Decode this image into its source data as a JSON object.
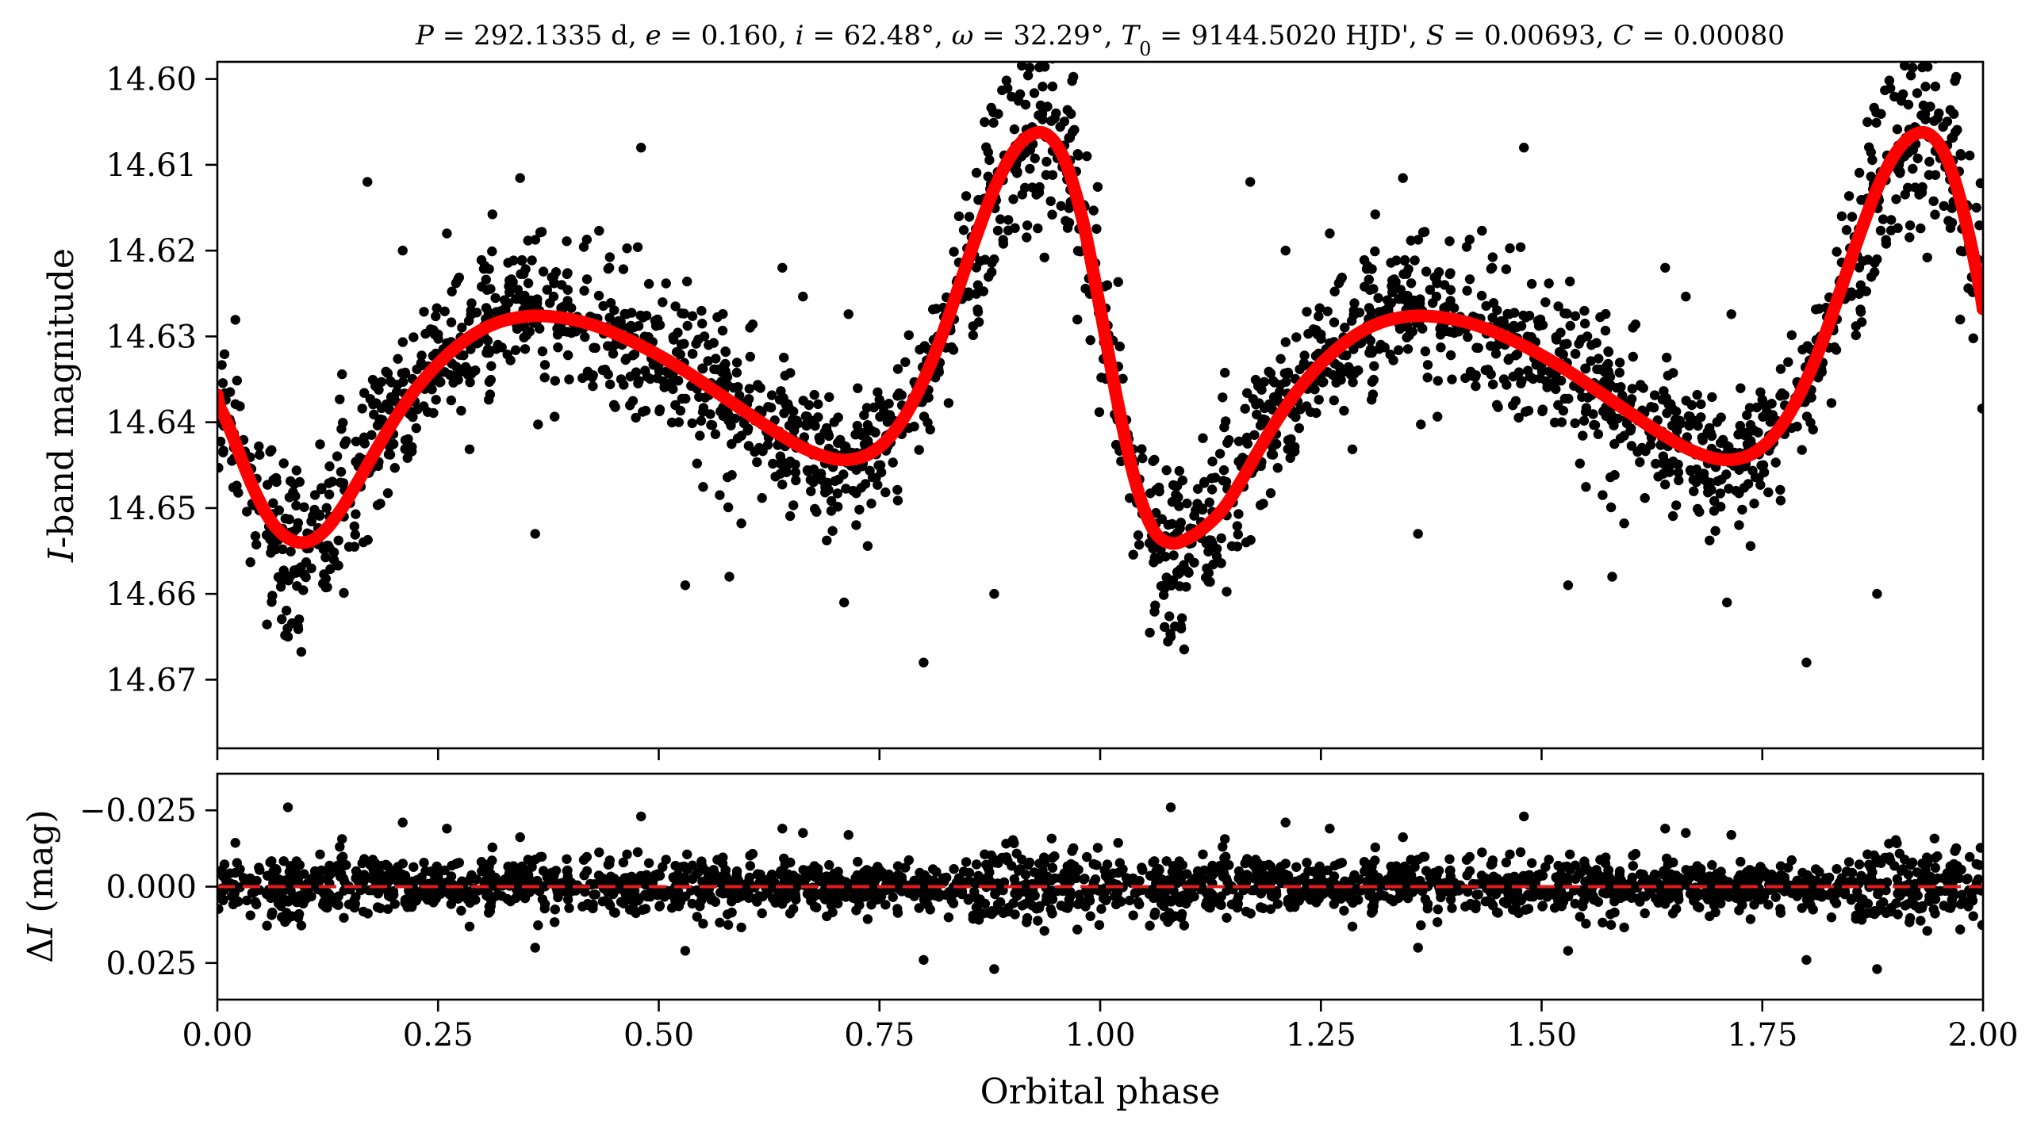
{
  "chart_data": [
    {
      "type": "scatter",
      "panel": "top",
      "title": "P = 292.1335 d, e = 0.160, i = 62.48°, ω = 32.29°, T0 = 9144.5020 HJD', S = 0.00693, C = 0.00080",
      "title_parts": {
        "P": "P",
        "P_val": " = 292.1335 d, ",
        "e": "e",
        "e_val": " = 0.160, ",
        "i": "i",
        "i_val": " = 62.48°, ",
        "w": "ω",
        "w_val": " = 32.29°, ",
        "T": "T",
        "T_sub": "0",
        "T_val": " = 9144.5020 HJD', ",
        "S": "S",
        "S_val": " = 0.00693, ",
        "C": "C",
        "C_val": " = 0.00080"
      },
      "ylabel_italic": "I",
      "ylabel_rest": "-band magnitude",
      "xlim": [
        0.0,
        2.0
      ],
      "ylim": [
        14.678,
        14.598
      ],
      "y_inverted": true,
      "yticks": [
        "14.60",
        "14.61",
        "14.62",
        "14.63",
        "14.64",
        "14.65",
        "14.66",
        "14.67"
      ],
      "ytick_values": [
        14.6,
        14.61,
        14.62,
        14.63,
        14.64,
        14.65,
        14.66,
        14.67
      ],
      "xticks_values": [
        0.0,
        0.25,
        0.5,
        0.75,
        1.0,
        1.25,
        1.5,
        1.75,
        2.0
      ],
      "series": [
        {
          "kind": "points",
          "color": "#000000",
          "outliers": [
            [
              0.08,
              14.665
            ],
            [
              0.17,
              14.612
            ],
            [
              0.21,
              14.62
            ],
            [
              0.26,
              14.618
            ],
            [
              0.36,
              14.653
            ],
            [
              0.39,
              14.624
            ],
            [
              0.48,
              14.608
            ],
            [
              0.53,
              14.659
            ],
            [
              0.58,
              14.658
            ],
            [
              0.64,
              14.622
            ],
            [
              0.71,
              14.661
            ],
            [
              0.8,
              14.668
            ],
            [
              0.84,
              14.616
            ],
            [
              0.88,
              14.66
            ],
            [
              0.95,
              14.604
            ],
            [
              1.08,
              14.665
            ],
            [
              1.17,
              14.612
            ],
            [
              1.21,
              14.62
            ],
            [
              1.26,
              14.618
            ],
            [
              1.36,
              14.653
            ],
            [
              1.39,
              14.624
            ],
            [
              1.48,
              14.608
            ],
            [
              1.53,
              14.659
            ],
            [
              1.58,
              14.658
            ],
            [
              1.64,
              14.622
            ],
            [
              1.71,
              14.661
            ],
            [
              1.8,
              14.668
            ],
            [
              1.84,
              14.616
            ],
            [
              1.88,
              14.66
            ],
            [
              1.95,
              14.604
            ]
          ]
        },
        {
          "kind": "model",
          "color": "#ff0000",
          "x": [
            0.0,
            0.02,
            0.04,
            0.06,
            0.08,
            0.1,
            0.12,
            0.14,
            0.16,
            0.18,
            0.2,
            0.22,
            0.24,
            0.26,
            0.28,
            0.3,
            0.32,
            0.34,
            0.36,
            0.38,
            0.4,
            0.42,
            0.44,
            0.46,
            0.48,
            0.5,
            0.52,
            0.54,
            0.56,
            0.58,
            0.6,
            0.62,
            0.64,
            0.66,
            0.68,
            0.7,
            0.72,
            0.74,
            0.76,
            0.78,
            0.8,
            0.82,
            0.84,
            0.86,
            0.88,
            0.9,
            0.92,
            0.94,
            0.96,
            0.98,
            1.0,
            1.02,
            1.04,
            1.06,
            1.08,
            1.1,
            1.12,
            1.14,
            1.16,
            1.18,
            1.2,
            1.22,
            1.24,
            1.26,
            1.28,
            1.3,
            1.32,
            1.34,
            1.36,
            1.38,
            1.4,
            1.42,
            1.44,
            1.46,
            1.48,
            1.5,
            1.52,
            1.54,
            1.56,
            1.58,
            1.6,
            1.62,
            1.64,
            1.66,
            1.68,
            1.7,
            1.72,
            1.74,
            1.76,
            1.78,
            1.8,
            1.82,
            1.84,
            1.86,
            1.88,
            1.9,
            1.92,
            1.94,
            1.96,
            1.98,
            2.0
          ],
          "y": [
            14.6368,
            14.6423,
            14.6475,
            14.6514,
            14.6535,
            14.654,
            14.6528,
            14.6502,
            14.6468,
            14.6432,
            14.6398,
            14.6368,
            14.6343,
            14.6322,
            14.6305,
            14.6292,
            14.6283,
            14.6278,
            14.6276,
            14.6277,
            14.628,
            14.6285,
            14.6292,
            14.6301,
            14.6311,
            14.6322,
            14.6334,
            14.6347,
            14.6361,
            14.6375,
            14.6389,
            14.6403,
            14.6416,
            14.6428,
            14.6437,
            14.6443,
            14.6443,
            14.6436,
            14.6419,
            14.6391,
            14.6351,
            14.6301,
            14.6242,
            14.6182,
            14.6128,
            14.6088,
            14.6066,
            14.6065,
            14.6095,
            14.6164,
            14.6268,
            14.6378,
            14.647,
            14.6525,
            14.6541,
            14.6535,
            14.6521,
            14.65,
            14.6468,
            14.6432,
            14.6398,
            14.6368,
            14.6343,
            14.6322,
            14.6305,
            14.6292,
            14.6283,
            14.6278,
            14.6276,
            14.6277,
            14.628,
            14.6285,
            14.6292,
            14.6301,
            14.6311,
            14.6322,
            14.6334,
            14.6347,
            14.6361,
            14.6375,
            14.6389,
            14.6403,
            14.6416,
            14.6428,
            14.6437,
            14.6443,
            14.6443,
            14.6436,
            14.6419,
            14.6391,
            14.6351,
            14.6301,
            14.6242,
            14.6182,
            14.6128,
            14.6088,
            14.6066,
            14.6065,
            14.6095,
            14.6164,
            14.6268
          ]
        }
      ]
    },
    {
      "type": "scatter",
      "panel": "residuals",
      "ylabel_prefix": "Δ",
      "ylabel_italic": "I",
      "ylabel_rest": " (mag)",
      "xlabel": "Orbital phase",
      "xlim": [
        0.0,
        2.0
      ],
      "ylim": [
        0.037,
        -0.037
      ],
      "y_inverted": true,
      "yticks": [
        "−0.025",
        "0.000",
        "0.025"
      ],
      "ytick_values": [
        -0.025,
        0.0,
        0.025
      ],
      "xticks": [
        "0.00",
        "0.25",
        "0.50",
        "0.75",
        "1.00",
        "1.25",
        "1.50",
        "1.75",
        "2.00"
      ],
      "xticks_values": [
        0.0,
        0.25,
        0.5,
        0.75,
        1.0,
        1.25,
        1.5,
        1.75,
        2.0
      ],
      "zero_line": {
        "y": 0.0,
        "color": "#e41a1c",
        "style": "dashed"
      },
      "series": [
        {
          "kind": "points",
          "color": "#000000",
          "outliers": [
            [
              0.08,
              -0.026
            ],
            [
              0.21,
              -0.021
            ],
            [
              0.26,
              -0.019
            ],
            [
              0.36,
              0.02
            ],
            [
              0.48,
              -0.023
            ],
            [
              0.53,
              0.021
            ],
            [
              0.64,
              -0.019
            ],
            [
              0.8,
              0.024
            ],
            [
              0.88,
              0.027
            ],
            [
              1.08,
              -0.026
            ],
            [
              1.21,
              -0.021
            ],
            [
              1.26,
              -0.019
            ],
            [
              1.36,
              0.02
            ],
            [
              1.48,
              -0.023
            ],
            [
              1.53,
              0.021
            ],
            [
              1.64,
              -0.019
            ],
            [
              1.8,
              0.024
            ],
            [
              1.88,
              0.027
            ]
          ]
        }
      ]
    }
  ]
}
